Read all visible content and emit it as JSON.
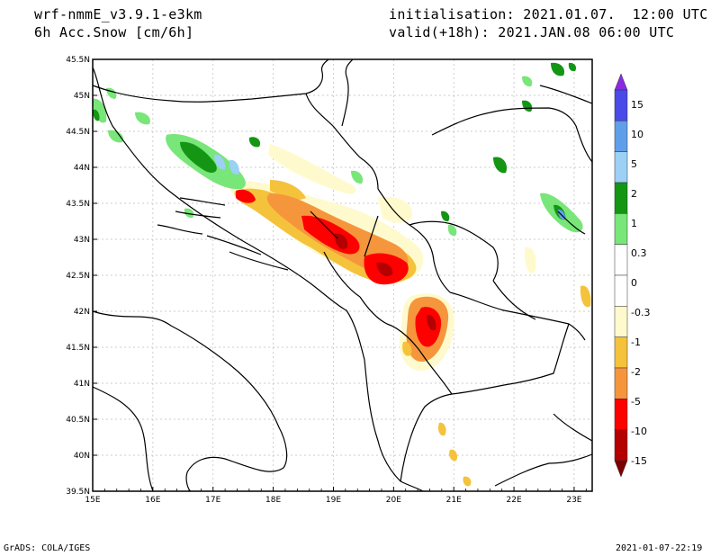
{
  "header": {
    "model": "wrf-nmmE_v3.9.1-e3km",
    "field": "6h Acc.Snow [cm/6h]",
    "init": "initialisation: 2021.01.07.  12:00 UTC",
    "valid": "valid(+18h): 2021.JAN.08 06:00 UTC"
  },
  "footer": {
    "left": "GrADS: COLA/IGES",
    "right": "2021-01-07-22:19"
  },
  "map": {
    "lon_range": [
      15,
      23.3
    ],
    "lat_range": [
      39.5,
      45.5
    ],
    "x_ticks": [
      "15E",
      "16E",
      "17E",
      "18E",
      "19E",
      "20E",
      "21E",
      "22E",
      "23E"
    ],
    "y_ticks": [
      "45.5N",
      "45N",
      "44.5N",
      "44N",
      "43.5N",
      "43N",
      "42.5N",
      "42N",
      "41.5N",
      "41N",
      "40.5N",
      "40N",
      "39.5N"
    ]
  },
  "colorbar": {
    "labels": [
      "15",
      "10",
      "5",
      "2",
      "1",
      "0.3",
      "0",
      "-0.3",
      "-1",
      "-2",
      "-5",
      "-10",
      "-15"
    ],
    "colors": [
      "#8a2be2",
      "#4a4ae8",
      "#5f9fea",
      "#9cd0f5",
      "#149614",
      "#78e678",
      "#ffffff",
      "#ffffff",
      "#fffacd",
      "#f5c23c",
      "#f5963c",
      "#ff0000",
      "#b40000",
      "#7d0000"
    ]
  }
}
